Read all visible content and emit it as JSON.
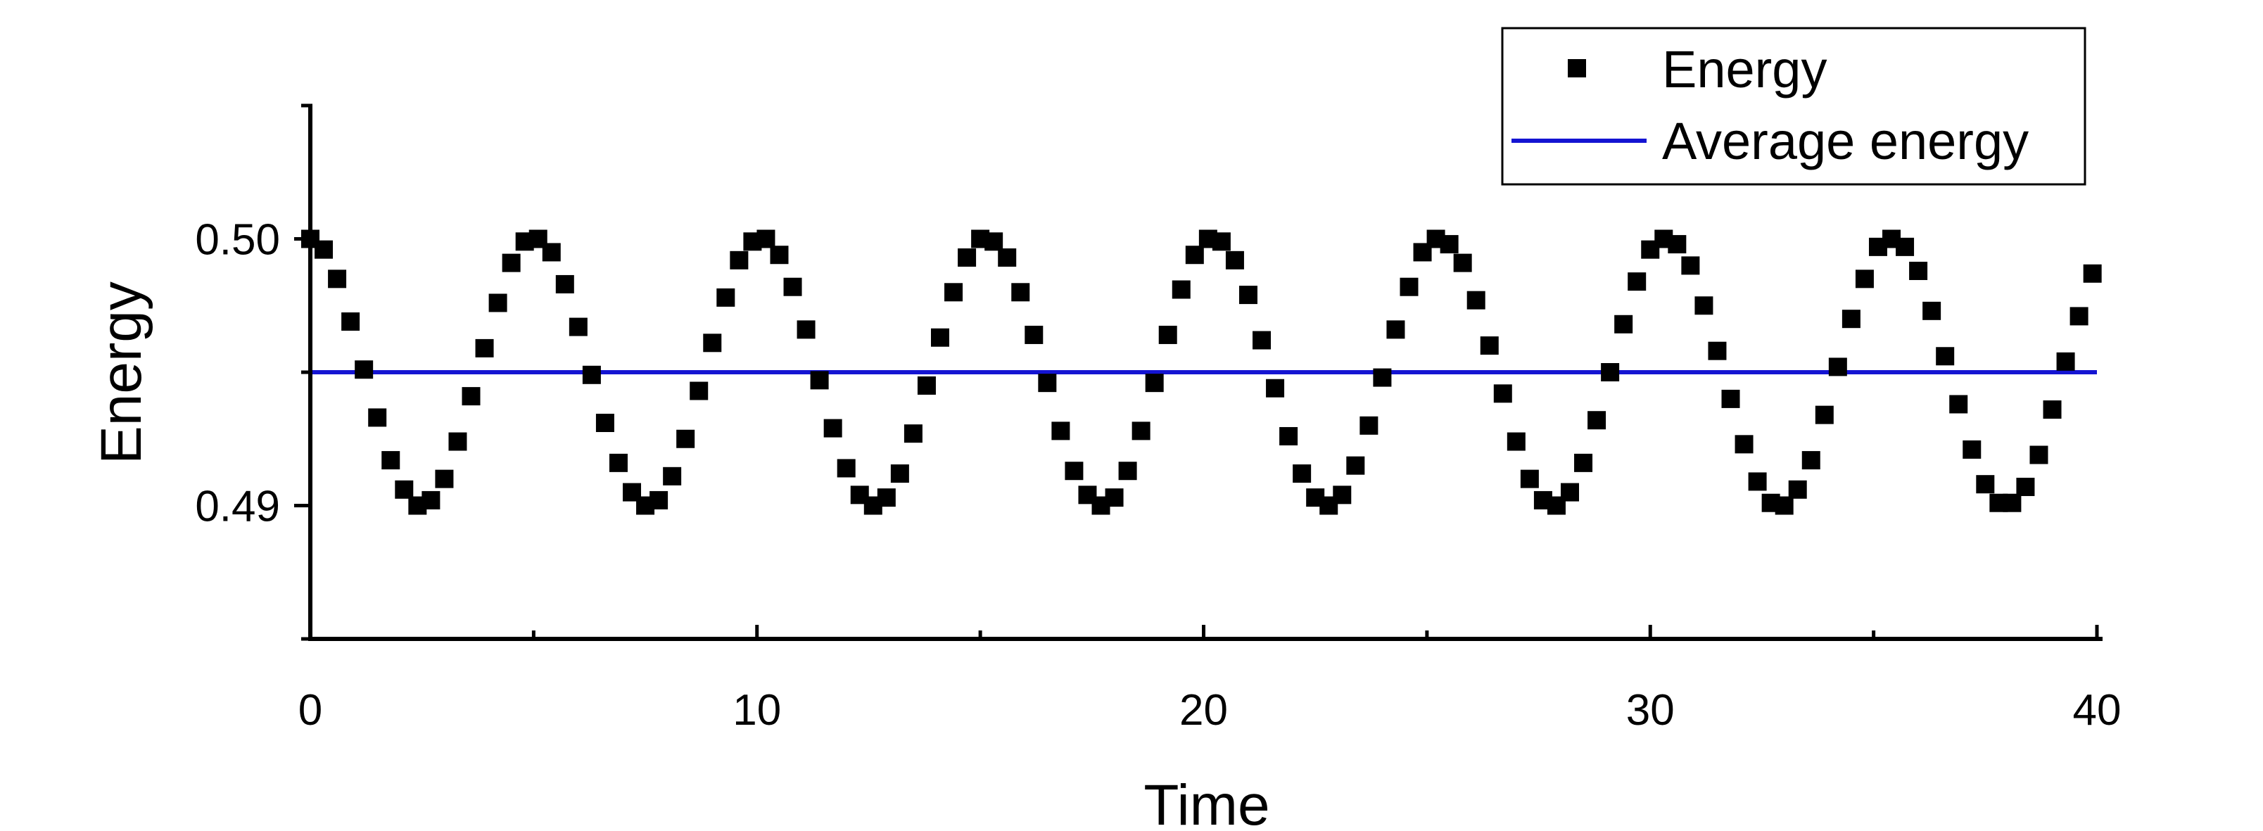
{
  "chart_data": {
    "type": "scatter",
    "xlabel": "Time",
    "ylabel": "Energy",
    "xlim": [
      0,
      40
    ],
    "ylim": [
      0.485,
      0.505
    ],
    "x_ticks": [
      0,
      10,
      20,
      30,
      40
    ],
    "x_tick_labels": [
      "0",
      "10",
      "20",
      "30",
      "40"
    ],
    "y_ticks": [
      0.49,
      0.5
    ],
    "y_tick_labels": [
      "0.49",
      "0.50"
    ],
    "grid": false,
    "legend_position": "top-right",
    "series": [
      {
        "name": "Energy",
        "kind": "scatter",
        "marker": "square",
        "color": "#000000",
        "x": [
          0,
          0.3,
          0.6,
          0.9,
          1.2,
          1.5,
          1.8,
          2.1,
          2.4,
          2.7,
          3.0,
          3.3,
          3.6,
          3.9,
          4.2,
          4.5,
          4.8,
          5.1,
          5.4,
          5.7,
          6.0,
          6.3,
          6.6,
          6.9,
          7.2,
          7.5,
          7.8,
          8.1,
          8.4,
          8.7,
          9.0,
          9.3,
          9.6,
          9.9,
          10.2,
          10.5,
          10.8,
          11.1,
          11.4,
          11.7,
          12.0,
          12.3,
          12.6,
          12.9,
          13.2,
          13.5,
          13.8,
          14.1,
          14.4,
          14.7,
          15.0,
          15.3,
          15.6,
          15.9,
          16.2,
          16.5,
          16.8,
          17.1,
          17.4,
          17.7,
          18.0,
          18.3,
          18.6,
          18.9,
          19.2,
          19.5,
          19.8,
          20.1,
          20.4,
          20.7,
          21.0,
          21.3,
          21.6,
          21.9,
          22.2,
          22.5,
          22.8,
          23.1,
          23.4,
          23.7,
          24.0,
          24.3,
          24.6,
          24.9,
          25.2,
          25.5,
          25.8,
          26.1,
          26.4,
          26.7,
          27.0,
          27.3,
          27.6,
          27.9,
          28.2,
          28.5,
          28.8,
          29.1,
          29.4,
          29.7,
          30.0,
          30.3,
          30.6,
          30.9,
          31.2,
          31.5,
          31.8,
          32.1,
          32.4,
          32.7,
          33.0,
          33.3,
          33.6,
          33.9,
          34.2,
          34.5,
          34.8,
          35.1,
          35.4,
          35.7,
          36.0,
          36.3,
          36.6,
          36.9,
          37.2,
          37.5,
          37.8,
          38.1,
          38.4,
          38.7,
          39.0,
          39.3,
          39.6,
          39.9
        ],
        "y": [
          0.5,
          0.4996,
          0.4985,
          0.4969,
          0.4951,
          0.4933,
          0.4917,
          0.4906,
          0.49,
          0.4902,
          0.491,
          0.4924,
          0.4941,
          0.4959,
          0.4976,
          0.4991,
          0.4999,
          0.5,
          0.4995,
          0.4983,
          0.4967,
          0.4949,
          0.4931,
          0.4916,
          0.4905,
          0.49,
          0.4902,
          0.4911,
          0.4925,
          0.4943,
          0.4961,
          0.4978,
          0.4992,
          0.4999,
          0.5,
          0.4994,
          0.4982,
          0.4966,
          0.4947,
          0.4929,
          0.4914,
          0.4904,
          0.49,
          0.4903,
          0.4912,
          0.4927,
          0.4945,
          0.4963,
          0.498,
          0.4993,
          0.5,
          0.4999,
          0.4993,
          0.498,
          0.4964,
          0.4946,
          0.4928,
          0.4913,
          0.4904,
          0.49,
          0.4903,
          0.4913,
          0.4928,
          0.4946,
          0.4964,
          0.4981,
          0.4994,
          0.5,
          0.4999,
          0.4992,
          0.4979,
          0.4962,
          0.4944,
          0.4926,
          0.4912,
          0.4903,
          0.49,
          0.4904,
          0.4915,
          0.493,
          0.4948,
          0.4966,
          0.4982,
          0.4995,
          0.5,
          0.4998,
          0.4991,
          0.4977,
          0.496,
          0.4942,
          0.4924,
          0.491,
          0.4902,
          0.49,
          0.4905,
          0.4916,
          0.4932,
          0.495,
          0.4968,
          0.4984,
          0.4996,
          0.5,
          0.4998,
          0.499,
          0.4975,
          0.4958,
          0.494,
          0.4923,
          0.4909,
          0.4901,
          0.49,
          0.4906,
          0.4917,
          0.4934,
          0.4952,
          0.497,
          0.4985,
          0.4997,
          0.5,
          0.4997,
          0.4988,
          0.4973,
          0.4956,
          0.4938,
          0.4921,
          0.4908,
          0.4901,
          0.4901,
          0.4907,
          0.4919,
          0.4936,
          0.4954,
          0.4971,
          0.4987
        ]
      },
      {
        "name": "Average energy",
        "kind": "line",
        "color": "#1414d2",
        "x": [
          0,
          40
        ],
        "y": [
          0.495,
          0.495
        ]
      }
    ]
  }
}
